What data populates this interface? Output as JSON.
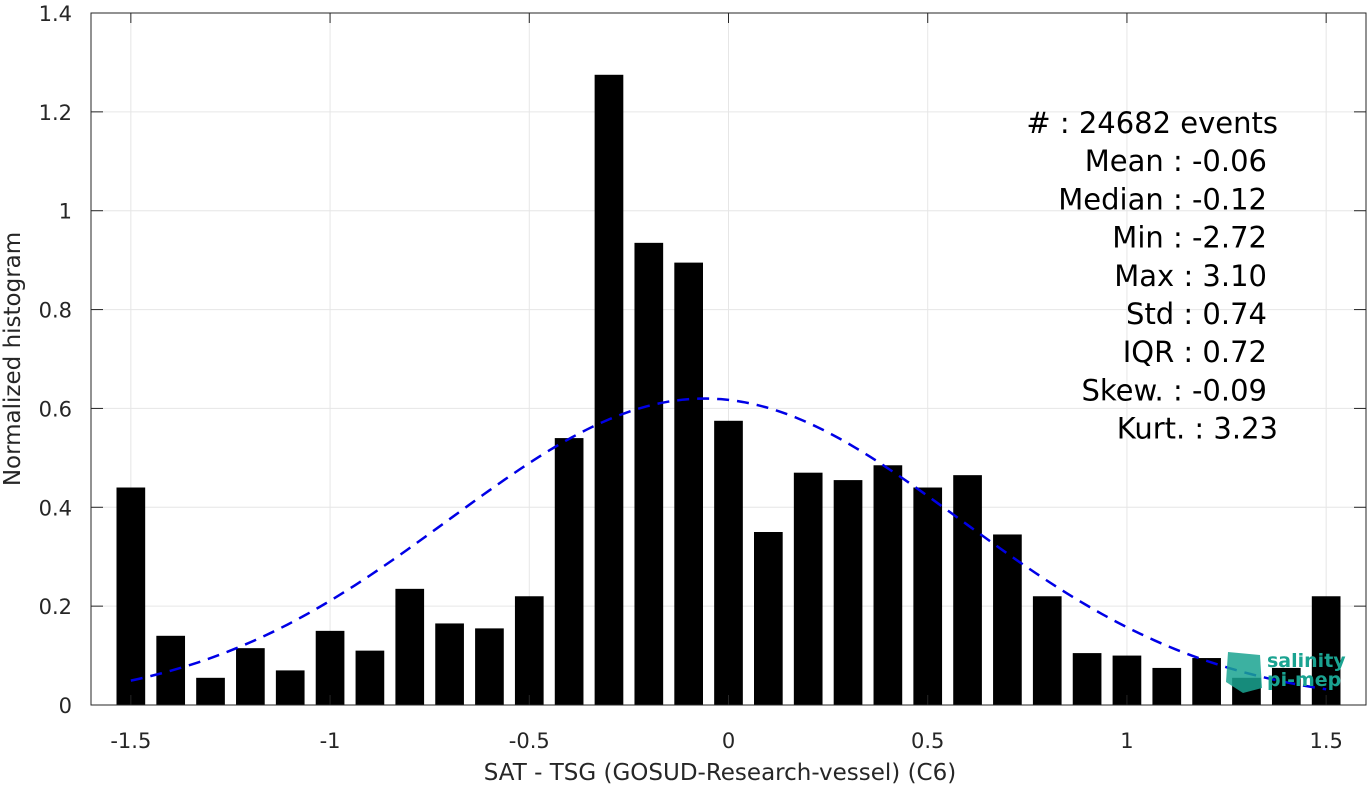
{
  "chart_data": {
    "type": "bar",
    "xlabel": "SAT - TSG (GOSUD-Research-vessel) (C6)",
    "ylabel": "Normalized histogram",
    "xlim": [
      -1.6,
      1.6
    ],
    "ylim": [
      0,
      1.4
    ],
    "grid": true,
    "bar_color": "#000000",
    "fit_color": "#0000e6",
    "x_ticks": [
      {
        "value": -1.5,
        "label": "-1.5"
      },
      {
        "value": -1,
        "label": "-1"
      },
      {
        "value": -0.5,
        "label": "-0.5"
      },
      {
        "value": 0,
        "label": "0"
      },
      {
        "value": 0.5,
        "label": "0.5"
      },
      {
        "value": 1,
        "label": "1"
      },
      {
        "value": 1.5,
        "label": "1.5"
      }
    ],
    "y_ticks": [
      {
        "value": 0,
        "label": "0"
      },
      {
        "value": 0.2,
        "label": "0.2"
      },
      {
        "value": 0.4,
        "label": "0.4"
      },
      {
        "value": 0.6,
        "label": "0.6"
      },
      {
        "value": 0.8,
        "label": "0.8"
      },
      {
        "value": 1,
        "label": "1"
      },
      {
        "value": 1.2,
        "label": "1.2"
      },
      {
        "value": 1.4,
        "label": "1.4"
      }
    ],
    "bin_centers": [
      -1.5,
      -1.4,
      -1.3,
      -1.2,
      -1.1,
      -1.0,
      -0.9,
      -0.8,
      -0.7,
      -0.6,
      -0.5,
      -0.4,
      -0.3,
      -0.2,
      -0.1,
      0.0,
      0.1,
      0.2,
      0.3,
      0.4,
      0.5,
      0.6,
      0.7,
      0.8,
      0.9,
      1.0,
      1.1,
      1.2,
      1.3,
      1.4,
      1.5
    ],
    "values": [
      0.44,
      0.14,
      0.055,
      0.115,
      0.07,
      0.15,
      0.11,
      0.235,
      0.165,
      0.155,
      0.22,
      0.54,
      1.275,
      0.935,
      0.895,
      0.575,
      0.35,
      0.47,
      0.455,
      0.485,
      0.44,
      0.465,
      0.345,
      0.22,
      0.105,
      0.1,
      0.075,
      0.095,
      0.055,
      0.075,
      0.22
    ],
    "fit": {
      "type": "normal",
      "mean": -0.06,
      "std": 0.64,
      "peak": 0.62,
      "x_range": [
        -1.5,
        1.5
      ],
      "style": "dashed"
    },
    "stats": [
      "#  : 24682 events",
      "Mean : -0.06",
      "Median : -0.12",
      "Min : -2.72",
      "Max : 3.10",
      "Std : 0.74",
      "IQR : 0.72",
      "Skew. : -0.09",
      "Kurt. : 3.23"
    ],
    "logo": {
      "line1": "salinity",
      "line2": "pi-mep"
    }
  }
}
